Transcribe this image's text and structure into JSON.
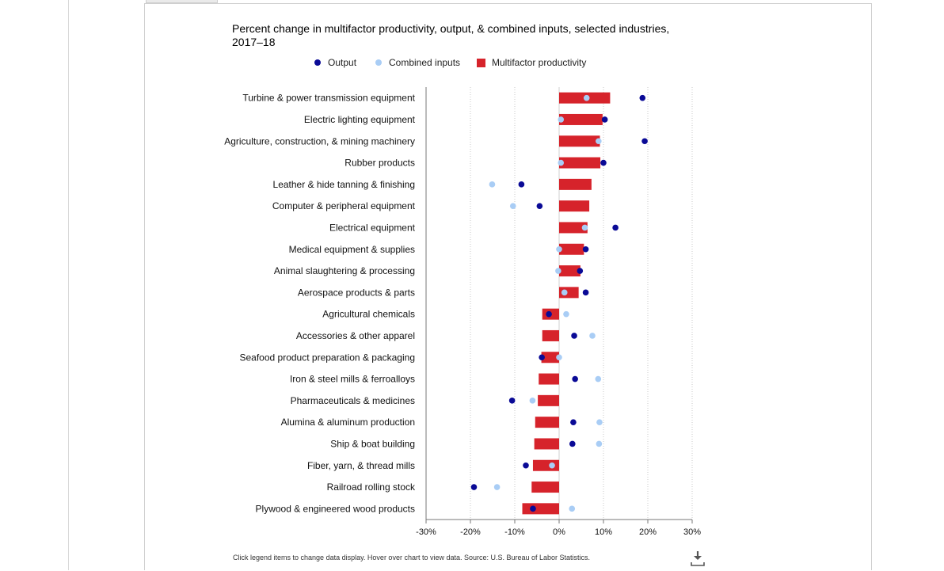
{
  "title": "Percent change in multifactor productivity, output, & combined inputs, selected industries, 2017–18",
  "legend": {
    "output": "Output",
    "inputs": "Combined inputs",
    "mfp": "Multifactor productivity"
  },
  "colors": {
    "output": "#0a0a96",
    "inputs": "#a9cdf5",
    "mfp": "#d6232b"
  },
  "footer": "Click legend items to change data display. Hover over chart to view data. Source: U.S. Bureau of Labor Statistics.",
  "download_icon": "download-icon",
  "chart_data": {
    "type": "bar",
    "orientation": "horizontal",
    "categories": [
      "Turbine & power transmission equipment",
      "Electric lighting equipment",
      "Agriculture, construction, & mining machinery",
      "Rubber products",
      "Leather & hide tanning & finishing",
      "Computer & peripheral equipment",
      "Electrical equipment",
      "Medical equipment & supplies",
      "Animal slaughtering & processing",
      "Aerospace products & parts",
      "Agricultural chemicals",
      "Accessories & other apparel",
      "Seafood product preparation & packaging",
      "Iron & steel mills & ferroalloys",
      "Pharmaceuticals & medicines",
      "Alumina & aluminum production",
      "Ship & boat building",
      "Fiber, yarn, & thread mills",
      "Railroad rolling stock",
      "Plywood & engineered wood products"
    ],
    "series": [
      {
        "name": "Multifactor productivity",
        "type": "bar",
        "values": [
          11.5,
          9.8,
          9.2,
          9.3,
          7.3,
          6.8,
          6.4,
          5.6,
          4.8,
          4.4,
          -3.8,
          -3.8,
          -4.0,
          -4.6,
          -4.8,
          -5.4,
          -5.6,
          -5.9,
          -6.2,
          -8.3
        ]
      },
      {
        "name": "Output",
        "type": "scatter",
        "values": [
          18.8,
          10.3,
          19.3,
          10.0,
          -8.5,
          -4.4,
          12.7,
          6.0,
          4.7,
          6.0,
          -2.3,
          3.4,
          -3.9,
          3.6,
          -10.6,
          3.2,
          3.0,
          -7.5,
          -19.2,
          -5.9
        ]
      },
      {
        "name": "Combined inputs",
        "type": "scatter",
        "values": [
          6.2,
          0.4,
          8.9,
          0.4,
          -15.1,
          -10.4,
          5.8,
          0.0,
          -0.2,
          1.2,
          1.6,
          7.5,
          0.0,
          8.8,
          -6.0,
          9.1,
          9.0,
          -1.6,
          -14.0,
          2.9
        ]
      }
    ],
    "xlim": [
      -30,
      30
    ],
    "xticks": [
      "-30%",
      "-20%",
      "-10%",
      "0%",
      "10%",
      "20%",
      "30%"
    ],
    "grid": "vertical dotted",
    "legend_position": "top"
  }
}
